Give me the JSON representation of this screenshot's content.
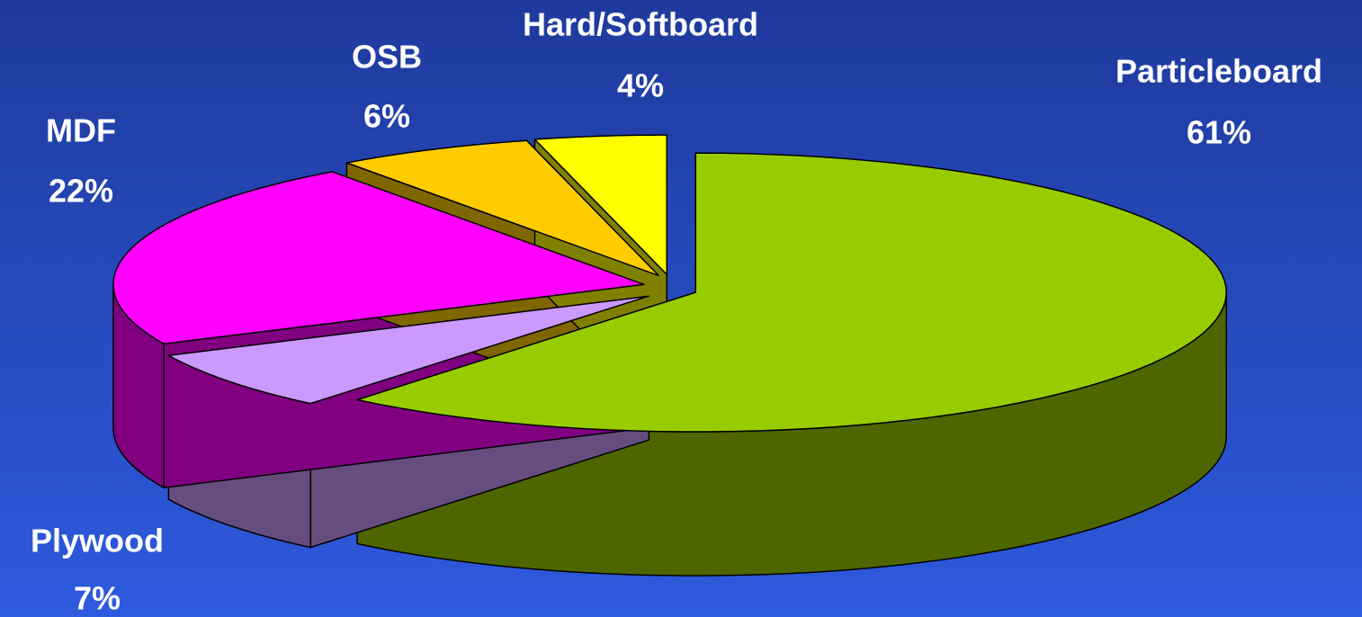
{
  "chart_data": {
    "type": "pie",
    "categories": [
      "Particleboard",
      "Plywood",
      "MDF",
      "OSB",
      "Hard/Softboard"
    ],
    "values": [
      61,
      7,
      22,
      6,
      4
    ],
    "value_labels": [
      "61%",
      "7%",
      "22%",
      "6%",
      "4%"
    ],
    "colors": [
      "#99cc00",
      "#cc99ff",
      "#ff00ff",
      "#ffcc00",
      "#ffff00"
    ]
  }
}
